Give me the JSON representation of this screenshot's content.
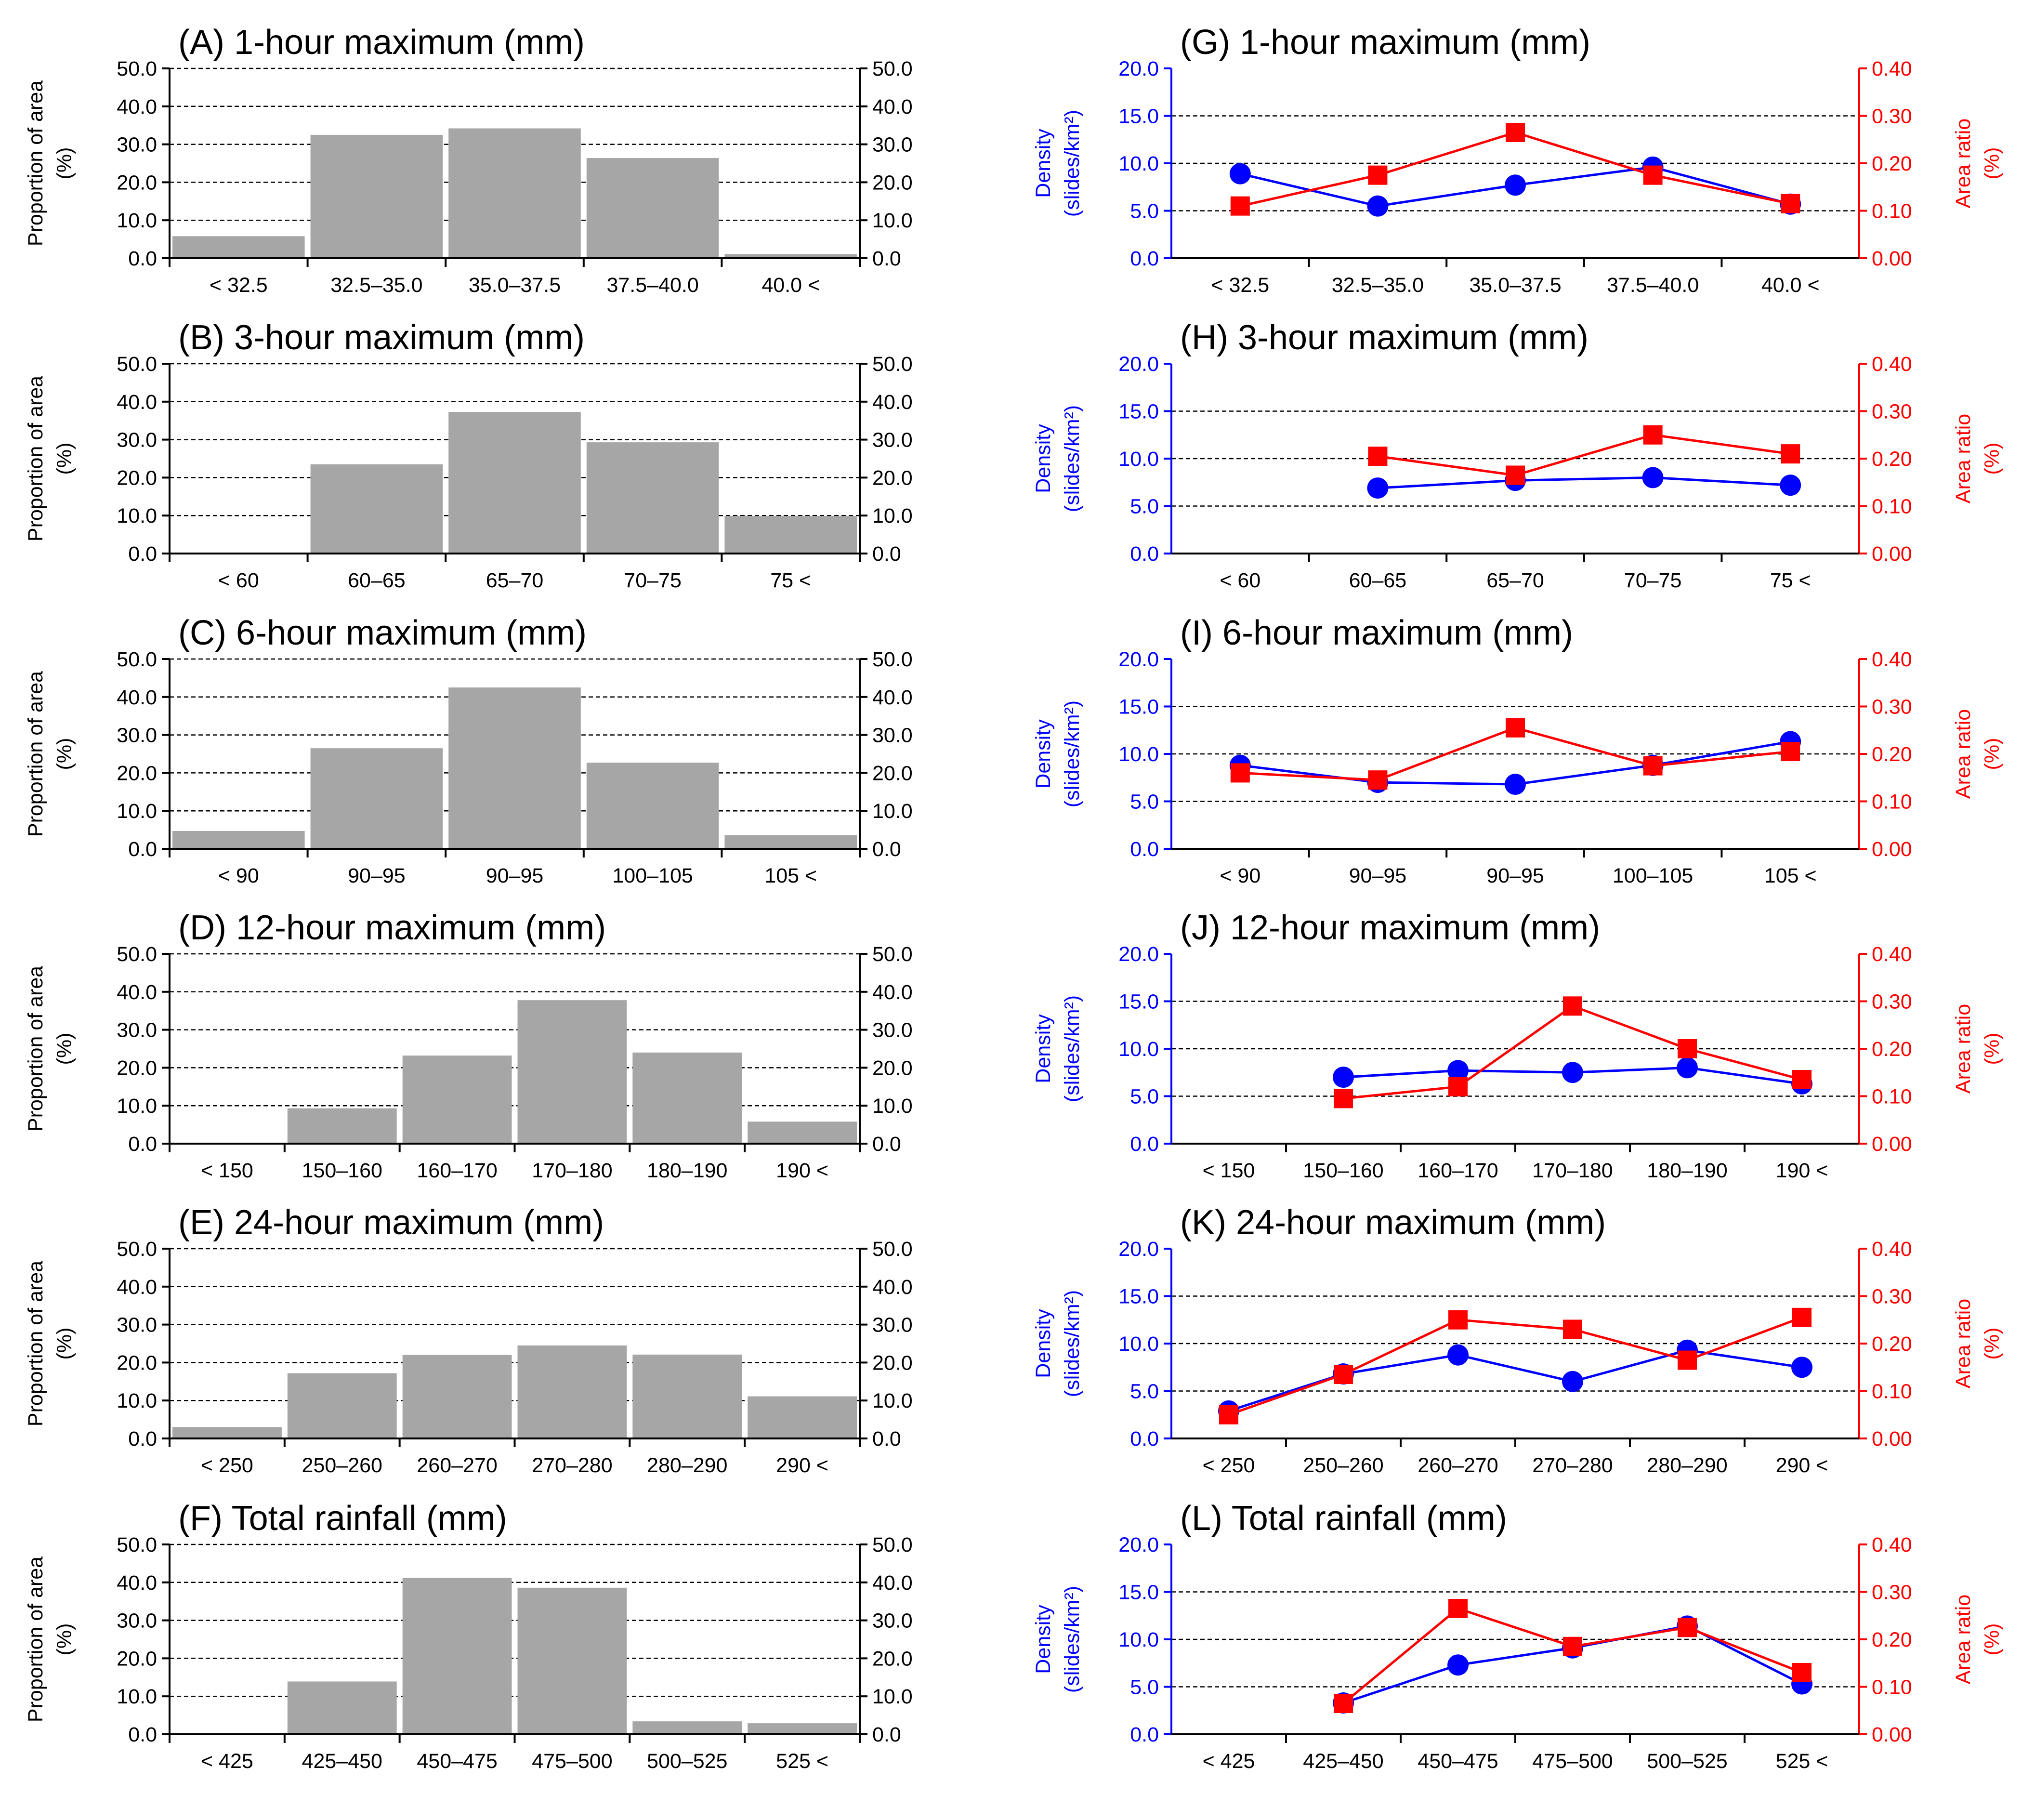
{
  "colors": {
    "bar": "#a6a6a6",
    "density": "#0000ff",
    "area_ratio": "#ff0000",
    "axis": "#000000",
    "grid": "#000000"
  },
  "left_axis_label": [
    "Proportion of area",
    "(%)"
  ],
  "right_axis_label_density": [
    "Density",
    "(slides/km²)"
  ],
  "right_axis_label_ratio": [
    "Area ratio",
    "(%)"
  ],
  "chart_data": [
    {
      "id": "A",
      "type": "bar",
      "title": "(A) 1-hour maximum (mm)",
      "categories": [
        "< 32.5",
        "32.5–35.0",
        "35.0–37.5",
        "37.5–40.0",
        "40.0 <"
      ],
      "values": [
        5.8,
        32.5,
        34.2,
        26.4,
        1.1
      ],
      "ylabel": "Proportion of area (%)",
      "ylim": [
        0,
        50
      ],
      "yticks": [
        "0.0",
        "10.0",
        "20.0",
        "30.0",
        "40.0",
        "50.0"
      ]
    },
    {
      "id": "B",
      "type": "bar",
      "title": "(B) 3-hour maximum (mm)",
      "categories": [
        "< 60",
        "60–65",
        "65–70",
        "70–75",
        "75 <"
      ],
      "values": [
        0,
        23.5,
        37.3,
        29.3,
        9.9
      ],
      "ylabel": "Proportion of area (%)",
      "ylim": [
        0,
        50
      ],
      "yticks": [
        "0.0",
        "10.0",
        "20.0",
        "30.0",
        "40.0",
        "50.0"
      ]
    },
    {
      "id": "C",
      "type": "bar",
      "title": "(C) 6-hour maximum (mm)",
      "categories": [
        "< 90",
        "90–95",
        "90–95",
        "100–105",
        "105 <"
      ],
      "values": [
        4.7,
        26.5,
        42.5,
        22.7,
        3.6
      ],
      "ylabel": "Proportion of area (%)",
      "ylim": [
        0,
        50
      ],
      "yticks": [
        "0.0",
        "10.0",
        "20.0",
        "30.0",
        "40.0",
        "50.0"
      ]
    },
    {
      "id": "D",
      "type": "bar",
      "title": "(D) 12-hour maximum (mm)",
      "categories": [
        "< 150",
        "150–160",
        "160–170",
        "170–180",
        "180–190",
        "190 <"
      ],
      "values": [
        0,
        9.3,
        23.2,
        37.8,
        24.0,
        5.8
      ],
      "ylabel": "Proportion of area (%)",
      "ylim": [
        0,
        50
      ],
      "yticks": [
        "0.0",
        "10.0",
        "20.0",
        "30.0",
        "40.0",
        "50.0"
      ]
    },
    {
      "id": "E",
      "type": "bar",
      "title": "(E) 24-hour maximum (mm)",
      "categories": [
        "< 250",
        "250–260",
        "260–270",
        "270–280",
        "280–290",
        "290 <"
      ],
      "values": [
        3.0,
        17.2,
        22.0,
        24.5,
        22.1,
        11.1
      ],
      "ylabel": "Proportion of area (%)",
      "ylim": [
        0,
        50
      ],
      "yticks": [
        "0.0",
        "10.0",
        "20.0",
        "30.0",
        "40.0",
        "50.0"
      ]
    },
    {
      "id": "F",
      "type": "bar",
      "title": "(F) Total rainfall (mm)",
      "categories": [
        "< 425",
        "425–450",
        "450–475",
        "475–500",
        "500–525",
        "525 <"
      ],
      "values": [
        0,
        13.9,
        41.2,
        38.6,
        3.4,
        2.9
      ],
      "ylabel": "Proportion of area (%)",
      "ylim": [
        0,
        50
      ],
      "yticks": [
        "0.0",
        "10.0",
        "20.0",
        "30.0",
        "40.0",
        "50.0"
      ]
    },
    {
      "id": "G",
      "type": "line",
      "title": "(G) 1-hour maximum (mm)",
      "categories": [
        "< 32.5",
        "32.5–35.0",
        "35.0–37.5",
        "37.5–40.0",
        "40.0 <"
      ],
      "series": [
        {
          "name": "Density (slides/km²)",
          "axis": "left",
          "marker": "circle",
          "values": [
            8.9,
            5.5,
            7.7,
            9.6,
            5.7
          ]
        },
        {
          "name": "Area ratio (%)",
          "axis": "right",
          "marker": "square",
          "values": [
            0.11,
            0.175,
            0.265,
            0.175,
            0.115
          ]
        }
      ],
      "ylim_left": [
        0,
        20
      ],
      "ylim_right": [
        0,
        0.4
      ],
      "yticks_left": [
        "0.0",
        "5.0",
        "10.0",
        "15.0",
        "20.0"
      ],
      "yticks_right": [
        "0.00",
        "0.10",
        "0.20",
        "0.30",
        "0.40"
      ]
    },
    {
      "id": "H",
      "type": "line",
      "title": "(H) 3-hour maximum (mm)",
      "categories": [
        "< 60",
        "60–65",
        "65–70",
        "70–75",
        "75 <"
      ],
      "series": [
        {
          "name": "Density (slides/km²)",
          "axis": "left",
          "marker": "circle",
          "values": [
            null,
            6.9,
            7.7,
            8.0,
            7.2
          ]
        },
        {
          "name": "Area ratio (%)",
          "axis": "right",
          "marker": "square",
          "values": [
            null,
            0.205,
            0.165,
            0.25,
            0.21
          ]
        }
      ],
      "ylim_left": [
        0,
        20
      ],
      "ylim_right": [
        0,
        0.4
      ],
      "yticks_left": [
        "0.0",
        "5.0",
        "10.0",
        "15.0",
        "20.0"
      ],
      "yticks_right": [
        "0.00",
        "0.10",
        "0.20",
        "0.30",
        "0.40"
      ]
    },
    {
      "id": "I",
      "type": "line",
      "title": "(I) 6-hour maximum (mm)",
      "categories": [
        "< 90",
        "90–95",
        "90–95",
        "100–105",
        "105 <"
      ],
      "series": [
        {
          "name": "Density (slides/km²)",
          "axis": "left",
          "marker": "circle",
          "values": [
            8.8,
            7.0,
            6.8,
            8.8,
            11.3
          ]
        },
        {
          "name": "Area ratio (%)",
          "axis": "right",
          "marker": "square",
          "values": [
            0.16,
            0.145,
            0.255,
            0.175,
            0.205
          ]
        }
      ],
      "ylim_left": [
        0,
        20
      ],
      "ylim_right": [
        0,
        0.4
      ],
      "yticks_left": [
        "0.0",
        "5.0",
        "10.0",
        "15.0",
        "20.0"
      ],
      "yticks_right": [
        "0.00",
        "0.10",
        "0.20",
        "0.30",
        "0.40"
      ]
    },
    {
      "id": "J",
      "type": "line",
      "title": "(J) 12-hour maximum (mm)",
      "categories": [
        "< 150",
        "150–160",
        "160–170",
        "170–180",
        "180–190",
        "190 <"
      ],
      "series": [
        {
          "name": "Density (slides/km²)",
          "axis": "left",
          "marker": "circle",
          "values": [
            null,
            7.0,
            7.7,
            7.5,
            8.0,
            6.3
          ]
        },
        {
          "name": "Area ratio (%)",
          "axis": "right",
          "marker": "square",
          "values": [
            null,
            0.095,
            0.12,
            0.29,
            0.2,
            0.135
          ]
        }
      ],
      "ylim_left": [
        0,
        20
      ],
      "ylim_right": [
        0,
        0.4
      ],
      "yticks_left": [
        "0.0",
        "5.0",
        "10.0",
        "15.0",
        "20.0"
      ],
      "yticks_right": [
        "0.00",
        "0.10",
        "0.20",
        "0.30",
        "0.40"
      ]
    },
    {
      "id": "K",
      "type": "line",
      "title": "(K) 24-hour maximum (mm)",
      "categories": [
        "< 250",
        "250–260",
        "260–270",
        "270–280",
        "280–290",
        "290 <"
      ],
      "series": [
        {
          "name": "Density (slides/km²)",
          "axis": "left",
          "marker": "circle",
          "values": [
            2.9,
            6.8,
            8.8,
            6.0,
            9.3,
            7.5
          ]
        },
        {
          "name": "Area ratio (%)",
          "axis": "right",
          "marker": "square",
          "values": [
            0.05,
            0.135,
            0.25,
            0.23,
            0.165,
            0.255
          ]
        }
      ],
      "ylim_left": [
        0,
        20
      ],
      "ylim_right": [
        0,
        0.4
      ],
      "yticks_left": [
        "0.0",
        "5.0",
        "10.0",
        "15.0",
        "20.0"
      ],
      "yticks_right": [
        "0.00",
        "0.10",
        "0.20",
        "0.30",
        "0.40"
      ]
    },
    {
      "id": "L",
      "type": "line",
      "title": "(L) Total rainfall (mm)",
      "categories": [
        "< 425",
        "425–450",
        "450–475",
        "475–500",
        "500–525",
        "525 <"
      ],
      "series": [
        {
          "name": "Density (slides/km²)",
          "axis": "left",
          "marker": "circle",
          "values": [
            null,
            3.3,
            7.3,
            9.1,
            11.4,
            5.3
          ]
        },
        {
          "name": "Area ratio (%)",
          "axis": "right",
          "marker": "square",
          "values": [
            null,
            0.065,
            0.265,
            0.185,
            0.225,
            0.13
          ]
        }
      ],
      "ylim_left": [
        0,
        20
      ],
      "ylim_right": [
        0,
        0.4
      ],
      "yticks_left": [
        "0.0",
        "5.0",
        "10.0",
        "15.0",
        "20.0"
      ],
      "yticks_right": [
        "0.00",
        "0.10",
        "0.20",
        "0.30",
        "0.40"
      ]
    }
  ]
}
